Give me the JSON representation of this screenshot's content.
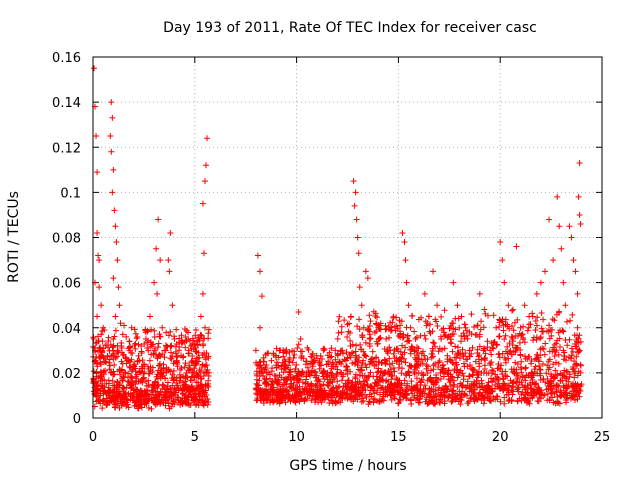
{
  "chart_data": {
    "type": "scatter",
    "title": "Day 193 of 2011, Rate Of TEC Index for receiver casc",
    "xlabel": "GPS time / hours",
    "ylabel": "ROTI / TECUs",
    "xlim": [
      0,
      25
    ],
    "ylim": [
      0,
      0.16
    ],
    "xticks": [
      0,
      5,
      10,
      15,
      20,
      25
    ],
    "xtick_labels": [
      "0",
      "5",
      "10",
      "15",
      "20",
      "25"
    ],
    "yticks": [
      0,
      0.02,
      0.04,
      0.06,
      0.08,
      0.1,
      0.12,
      0.14,
      0.16
    ],
    "ytick_labels": [
      "0",
      "0.02",
      "0.04",
      "0.06",
      "0.08",
      "0.1",
      "0.12",
      "0.14",
      "0.16"
    ],
    "grid": true,
    "marker": "+",
    "color": "#ff0000",
    "series": [
      {
        "name": "ROTI",
        "points": [
          [
            0.05,
            0.155
          ],
          [
            0.1,
            0.138
          ],
          [
            0.15,
            0.125
          ],
          [
            0.2,
            0.109
          ],
          [
            0.2,
            0.082
          ],
          [
            0.25,
            0.072
          ],
          [
            0.3,
            0.07
          ],
          [
            0.1,
            0.06
          ],
          [
            0.3,
            0.058
          ],
          [
            0.4,
            0.05
          ],
          [
            0.2,
            0.045
          ],
          [
            0.5,
            0.04
          ],
          [
            0.1,
            0.03
          ],
          [
            0.4,
            0.028
          ],
          [
            0.6,
            0.025
          ],
          [
            0.2,
            0.015
          ],
          [
            0.5,
            0.012
          ],
          [
            0.8,
            0.01
          ],
          [
            0.3,
            0.008
          ],
          [
            0.7,
            0.006
          ],
          [
            0.9,
            0.14
          ],
          [
            0.95,
            0.133
          ],
          [
            0.85,
            0.125
          ],
          [
            0.9,
            0.118
          ],
          [
            1.0,
            0.11
          ],
          [
            0.95,
            0.1
          ],
          [
            1.05,
            0.092
          ],
          [
            1.1,
            0.085
          ],
          [
            1.15,
            0.078
          ],
          [
            1.2,
            0.07
          ],
          [
            1.0,
            0.062
          ],
          [
            1.25,
            0.058
          ],
          [
            1.3,
            0.05
          ],
          [
            1.1,
            0.045
          ],
          [
            1.35,
            0.042
          ],
          [
            1.0,
            0.035
          ],
          [
            1.2,
            0.03
          ],
          [
            1.4,
            0.025
          ],
          [
            0.9,
            0.02
          ],
          [
            1.3,
            0.015
          ],
          [
            1.5,
            0.01
          ],
          [
            1.1,
            0.008
          ],
          [
            1.7,
            0.006
          ],
          [
            1.6,
            0.02
          ],
          [
            1.8,
            0.03
          ],
          [
            1.9,
            0.04
          ],
          [
            2.0,
            0.015
          ],
          [
            2.2,
            0.025
          ],
          [
            2.4,
            0.012
          ],
          [
            2.6,
            0.035
          ],
          [
            2.8,
            0.045
          ],
          [
            3.0,
            0.06
          ],
          [
            3.1,
            0.075
          ],
          [
            3.2,
            0.088
          ],
          [
            3.3,
            0.07
          ],
          [
            3.15,
            0.055
          ],
          [
            3.4,
            0.04
          ],
          [
            3.5,
            0.03
          ],
          [
            3.6,
            0.02
          ],
          [
            3.7,
            0.07
          ],
          [
            3.75,
            0.065
          ],
          [
            3.8,
            0.082
          ],
          [
            3.9,
            0.05
          ],
          [
            4.0,
            0.035
          ],
          [
            4.1,
            0.025
          ],
          [
            4.3,
            0.018
          ],
          [
            4.5,
            0.01
          ],
          [
            4.7,
            0.03
          ],
          [
            4.9,
            0.02
          ],
          [
            5.0,
            0.012
          ],
          [
            5.2,
            0.035
          ],
          [
            5.3,
            0.045
          ],
          [
            5.4,
            0.055
          ],
          [
            5.5,
            0.04
          ],
          [
            5.4,
            0.095
          ],
          [
            5.5,
            0.105
          ],
          [
            5.55,
            0.112
          ],
          [
            5.6,
            0.124
          ],
          [
            5.45,
            0.073
          ],
          [
            5.6,
            0.02
          ],
          [
            8.1,
            0.072
          ],
          [
            8.2,
            0.065
          ],
          [
            8.3,
            0.054
          ],
          [
            8.2,
            0.04
          ],
          [
            8.0,
            0.03
          ],
          [
            8.4,
            0.025
          ],
          [
            8.6,
            0.02
          ],
          [
            8.8,
            0.015
          ],
          [
            9.0,
            0.01
          ],
          [
            9.2,
            0.03
          ],
          [
            9.4,
            0.022
          ],
          [
            9.6,
            0.018
          ],
          [
            9.8,
            0.01
          ],
          [
            10.0,
            0.008
          ],
          [
            10.1,
            0.047
          ],
          [
            10.2,
            0.035
          ],
          [
            10.3,
            0.02
          ],
          [
            10.5,
            0.012
          ],
          [
            10.8,
            0.025
          ],
          [
            11.0,
            0.015
          ],
          [
            11.3,
            0.02
          ],
          [
            11.6,
            0.01
          ],
          [
            11.9,
            0.03
          ],
          [
            12.2,
            0.02
          ],
          [
            12.5,
            0.015
          ],
          [
            12.8,
            0.105
          ],
          [
            12.9,
            0.1
          ],
          [
            12.85,
            0.094
          ],
          [
            12.95,
            0.088
          ],
          [
            13.0,
            0.08
          ],
          [
            13.05,
            0.073
          ],
          [
            13.1,
            0.058
          ],
          [
            13.2,
            0.05
          ],
          [
            13.3,
            0.04
          ],
          [
            13.4,
            0.065
          ],
          [
            13.5,
            0.062
          ],
          [
            13.6,
            0.035
          ],
          [
            13.8,
            0.025
          ],
          [
            14.0,
            0.015
          ],
          [
            14.3,
            0.02
          ],
          [
            14.6,
            0.03
          ],
          [
            14.9,
            0.025
          ],
          [
            15.2,
            0.082
          ],
          [
            15.3,
            0.078
          ],
          [
            15.35,
            0.07
          ],
          [
            15.4,
            0.06
          ],
          [
            15.5,
            0.05
          ],
          [
            15.6,
            0.04
          ],
          [
            15.8,
            0.03
          ],
          [
            16.0,
            0.02
          ],
          [
            16.3,
            0.055
          ],
          [
            16.5,
            0.045
          ],
          [
            16.7,
            0.065
          ],
          [
            16.9,
            0.05
          ],
          [
            17.1,
            0.035
          ],
          [
            17.4,
            0.025
          ],
          [
            17.7,
            0.06
          ],
          [
            17.9,
            0.05
          ],
          [
            18.1,
            0.045
          ],
          [
            18.3,
            0.04
          ],
          [
            18.5,
            0.03
          ],
          [
            18.8,
            0.025
          ],
          [
            19.0,
            0.055
          ],
          [
            19.2,
            0.02
          ],
          [
            19.5,
            0.03
          ],
          [
            19.8,
            0.04
          ],
          [
            20.0,
            0.078
          ],
          [
            20.1,
            0.07
          ],
          [
            20.2,
            0.06
          ],
          [
            20.4,
            0.05
          ],
          [
            20.6,
            0.035
          ],
          [
            20.8,
            0.076
          ],
          [
            21.0,
            0.04
          ],
          [
            21.2,
            0.05
          ],
          [
            21.4,
            0.04
          ],
          [
            21.6,
            0.045
          ],
          [
            21.8,
            0.055
          ],
          [
            22.0,
            0.06
          ],
          [
            22.2,
            0.065
          ],
          [
            22.4,
            0.088
          ],
          [
            22.6,
            0.07
          ],
          [
            22.8,
            0.098
          ],
          [
            22.9,
            0.085
          ],
          [
            23.0,
            0.075
          ],
          [
            23.1,
            0.06
          ],
          [
            23.2,
            0.05
          ],
          [
            23.4,
            0.085
          ],
          [
            23.5,
            0.08
          ],
          [
            23.6,
            0.07
          ],
          [
            23.7,
            0.065
          ],
          [
            23.8,
            0.055
          ],
          [
            23.9,
            0.113
          ],
          [
            23.85,
            0.098
          ],
          [
            23.9,
            0.09
          ],
          [
            23.95,
            0.086
          ],
          [
            23.8,
            0.04
          ],
          [
            23.9,
            0.03
          ],
          [
            23.95,
            0.02
          ],
          [
            23.7,
            0.015
          ],
          [
            23.5,
            0.01
          ]
        ],
        "dense_ranges": [
          {
            "x": [
              0,
              5.7
            ],
            "y_base": [
              0.004,
              0.012
            ],
            "y_spread": 0.03,
            "n": 900
          },
          {
            "x": [
              8.0,
              12.0
            ],
            "y_base": [
              0.006,
              0.012
            ],
            "y_spread": 0.022,
            "n": 520
          },
          {
            "x": [
              12.0,
              24.0
            ],
            "y_base": [
              0.006,
              0.014
            ],
            "y_spread": 0.035,
            "n": 1500
          }
        ]
      }
    ]
  }
}
